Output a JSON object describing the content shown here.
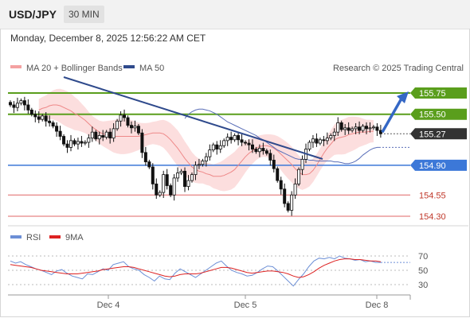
{
  "header": {
    "symbol": "USD/JPY",
    "timeframe": "30 MIN"
  },
  "timestamp": "Monday, December 8, 2025 12:56:22 AM CET",
  "legend": {
    "ma20": "MA 20 + Bollinger Bands",
    "ma50": "MA 50"
  },
  "copyright": "Research © 2025 Trading Central",
  "rsi_legend": {
    "rsi": "RSI",
    "ma": "9MA"
  },
  "colors": {
    "green": "#5a9e1c",
    "blue": "#3c78d8",
    "red": "#e06666",
    "dark": "#2f4a8c",
    "price": "#333333",
    "band": "#fbd3d3"
  },
  "chart_data": {
    "type": "candlestick",
    "symbol": "USD/JPY",
    "interval": "30 MIN",
    "x_ticks": [
      "Dec 4",
      "Dec 5",
      "Dec 8"
    ],
    "levels": [
      {
        "value": 155.75,
        "label": "155.75",
        "kind": "resistance"
      },
      {
        "value": 155.5,
        "label": "155.50",
        "kind": "resistance"
      },
      {
        "value": 155.27,
        "label": "155.27",
        "kind": "last-price"
      },
      {
        "value": 154.9,
        "label": "154.90",
        "kind": "pivot"
      },
      {
        "value": 154.55,
        "label": "154.55",
        "kind": "support"
      },
      {
        "value": 154.3,
        "label": "154.30",
        "kind": "support"
      }
    ],
    "close": [
      155.61,
      155.58,
      155.63,
      155.66,
      155.61,
      155.55,
      155.5,
      155.47,
      155.44,
      155.48,
      155.42,
      155.4,
      155.36,
      155.3,
      155.24,
      155.15,
      155.11,
      155.19,
      155.15,
      155.18,
      155.16,
      155.17,
      155.22,
      155.29,
      155.21,
      155.25,
      155.23,
      155.29,
      155.22,
      155.33,
      155.42,
      155.49,
      155.46,
      155.37,
      155.34,
      155.36,
      155.28,
      155.05,
      154.94,
      154.88,
      154.68,
      154.55,
      154.58,
      154.79,
      154.66,
      154.55,
      154.75,
      154.81,
      154.83,
      154.65,
      154.72,
      154.79,
      154.9,
      154.91,
      154.95,
      155.0,
      155.08,
      155.14,
      155.09,
      155.13,
      155.19,
      155.23,
      155.2,
      155.25,
      155.2,
      155.17,
      155.16,
      155.14,
      155.09,
      155.06,
      155.1,
      155.07,
      155.04,
      154.96,
      154.86,
      154.72,
      154.62,
      154.45,
      154.37,
      154.55,
      154.68,
      154.85,
      154.97,
      155.09,
      155.17,
      155.21,
      155.16,
      155.2,
      155.19,
      155.22,
      155.25,
      155.29,
      155.4,
      155.32,
      155.34,
      155.31,
      155.33,
      155.35,
      155.31,
      155.36,
      155.33,
      155.34,
      155.35,
      155.31,
      155.27
    ],
    "ma20": [
      155.55,
      155.57,
      155.58,
      155.6,
      155.61,
      155.61,
      155.6,
      155.58,
      155.56,
      155.54,
      155.51,
      155.49,
      155.46,
      155.43,
      155.39,
      155.35,
      155.32,
      155.29,
      155.27,
      155.26,
      155.25,
      155.24,
      155.24,
      155.24,
      155.24,
      155.24,
      155.24,
      155.24,
      155.24,
      155.25,
      155.26,
      155.27,
      155.28,
      155.28,
      155.28,
      155.27,
      155.24,
      155.2,
      155.15,
      155.1,
      155.04,
      154.98,
      154.93,
      154.88,
      154.85,
      154.83,
      154.82,
      154.8,
      154.79,
      154.77,
      154.77,
      154.77,
      154.78,
      154.8,
      154.82,
      154.85,
      154.9,
      154.95,
      155.0,
      155.04,
      155.07,
      155.1,
      155.12,
      155.13,
      155.13,
      155.12,
      155.1,
      155.07,
      155.03,
      154.99,
      154.95,
      154.91,
      154.86,
      154.82,
      154.79,
      154.79,
      154.8,
      154.84,
      154.9,
      154.97,
      155.04,
      155.1,
      155.15,
      155.2,
      155.22,
      155.23,
      155.24,
      155.26,
      155.27,
      155.28,
      155.29,
      155.29,
      155.29,
      155.3,
      155.3
    ],
    "ma50": [
      155.45,
      155.5,
      155.53,
      155.55,
      155.56,
      155.56,
      155.55,
      155.54,
      155.52,
      155.5,
      155.47,
      155.44,
      155.41,
      155.39,
      155.37,
      155.35,
      155.33,
      155.31,
      155.29,
      155.27,
      155.25,
      155.22,
      155.2,
      155.17,
      155.14,
      155.11,
      155.08,
      155.06,
      155.04,
      155.02,
      155.0,
      154.98,
      154.97,
      154.97,
      154.97,
      154.96,
      154.96,
      154.95,
      154.95,
      154.95,
      154.95,
      154.95,
      154.94,
      154.94,
      154.93,
      154.92,
      154.92,
      154.93,
      154.95,
      154.98,
      155.02,
      155.05,
      155.08,
      155.1,
      155.11,
      155.11
    ],
    "rsi": {
      "ticks": [
        70,
        50,
        30
      ],
      "rsi": [
        63,
        60,
        62,
        58,
        55,
        52,
        50,
        47,
        44,
        49,
        51,
        46,
        42,
        40,
        38,
        45,
        44,
        48,
        52,
        50,
        58,
        60,
        62,
        55,
        52,
        50,
        44,
        40,
        35,
        42,
        38,
        37,
        46,
        52,
        48,
        44,
        40,
        45,
        50,
        55,
        60,
        63,
        56,
        50,
        47,
        45,
        42,
        43,
        47,
        52,
        56,
        55,
        49,
        42,
        35,
        28,
        37,
        45,
        55,
        63,
        67,
        66,
        68,
        66,
        70,
        67,
        66,
        64,
        65,
        62,
        63,
        61,
        61
      ],
      "ma9": [
        58,
        57,
        56,
        55,
        54,
        52,
        50,
        49,
        48,
        47,
        46,
        45,
        45,
        45,
        46,
        47,
        48,
        49,
        51,
        52,
        53,
        54,
        55,
        55,
        54,
        52,
        50,
        48,
        46,
        44,
        42,
        41,
        42,
        44,
        45,
        45,
        45,
        46,
        48,
        50,
        52,
        54,
        54,
        53,
        51,
        49,
        47,
        46,
        47,
        48,
        49,
        49,
        48,
        47,
        45,
        42,
        40,
        41,
        44,
        48,
        53,
        57,
        60,
        63,
        65,
        66,
        66,
        65,
        65,
        64,
        63,
        63,
        62
      ]
    }
  }
}
